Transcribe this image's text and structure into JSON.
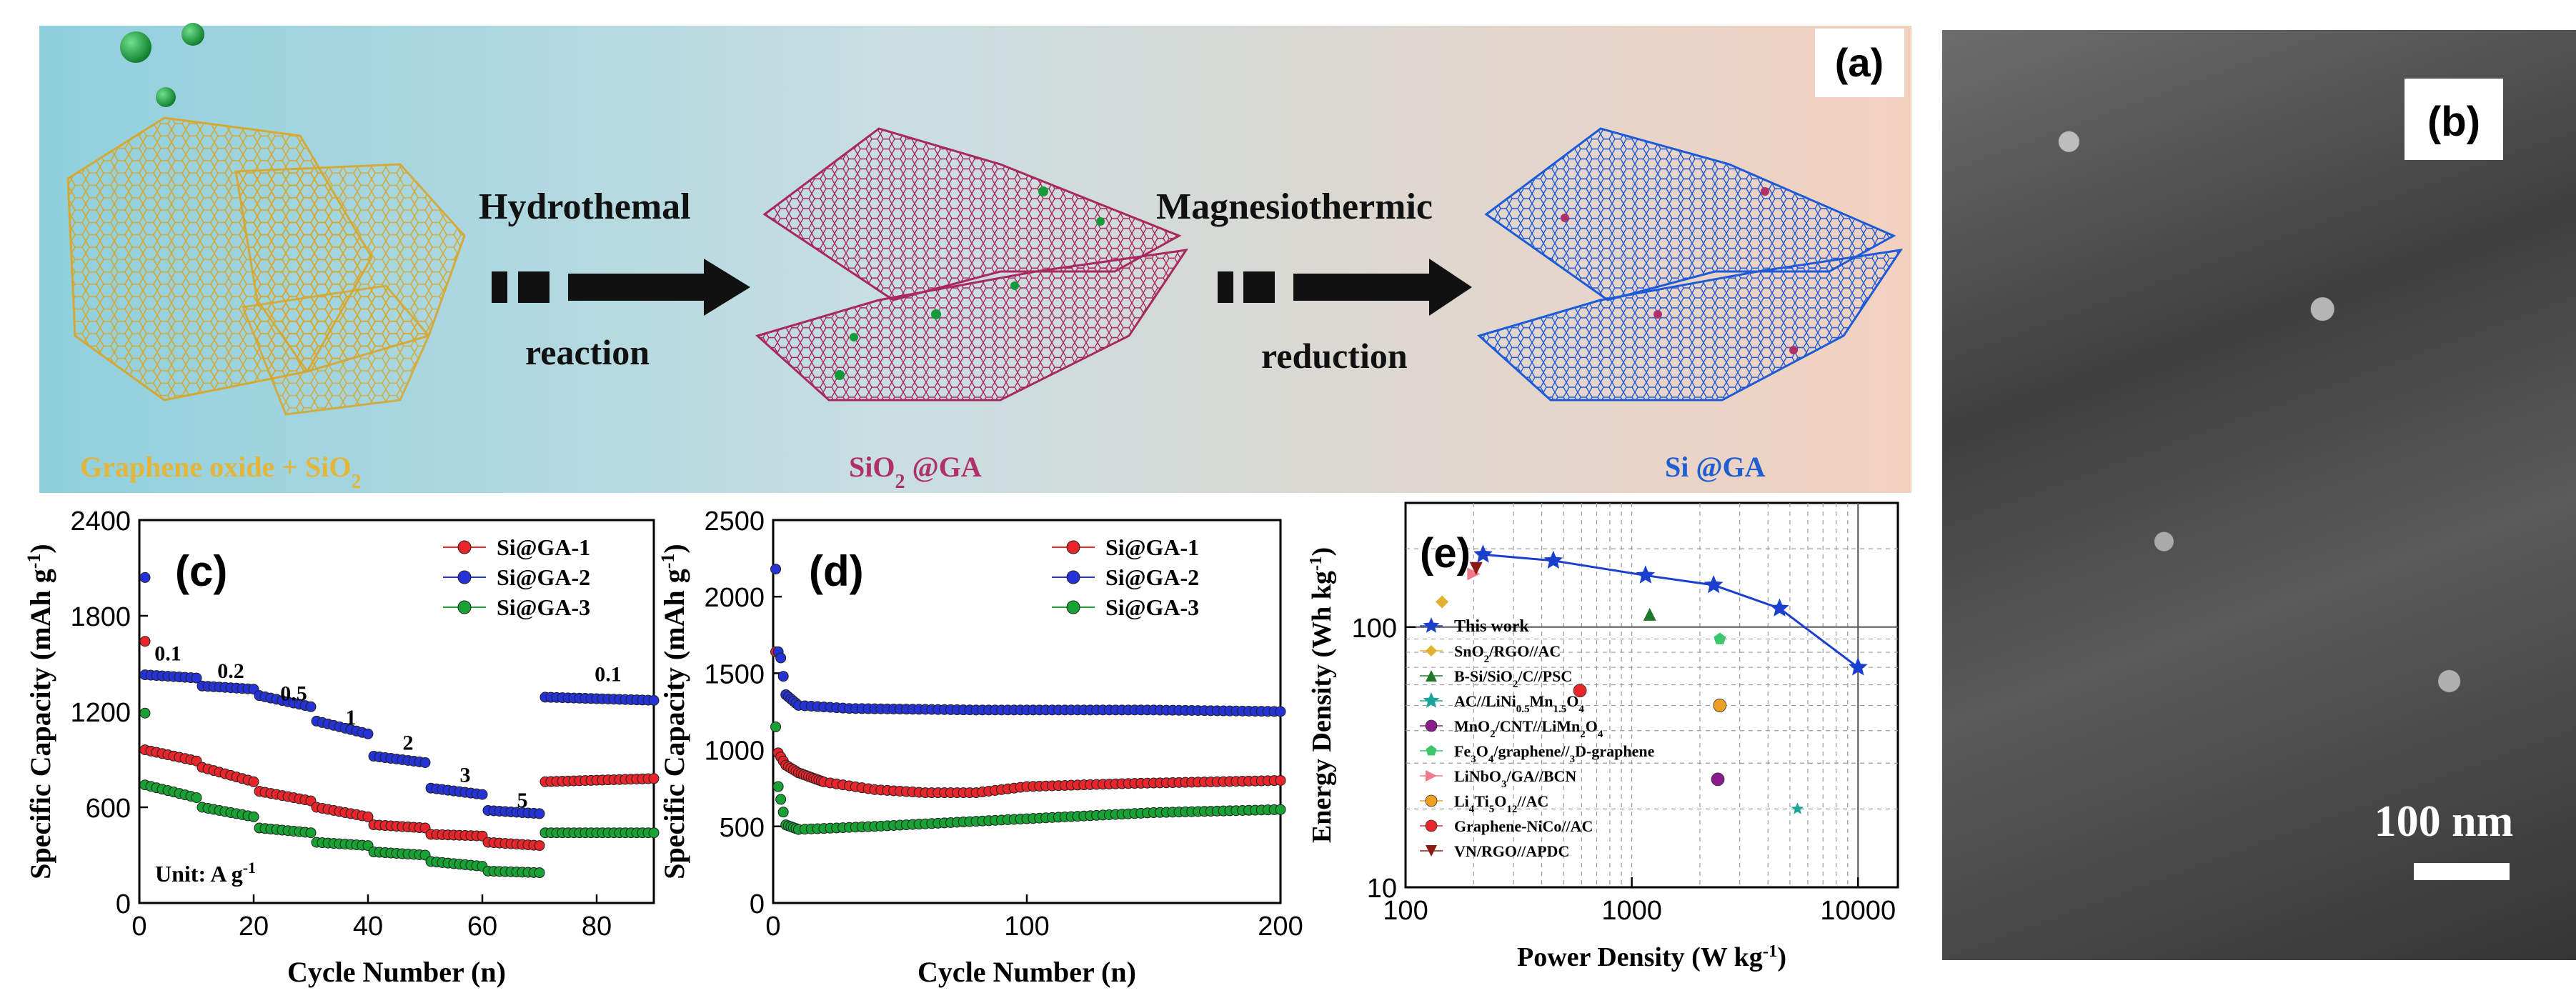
{
  "panel_a": {
    "label": "(a)",
    "steps": [
      {
        "title": "Graphene oxide + SiO",
        "sub": "2"
      },
      {
        "arrow_top": "Hydrothemal",
        "arrow_bottom": "reaction"
      },
      {
        "title": "SiO",
        "sub": "2",
        "suffix": " @GA"
      },
      {
        "arrow_top": "Magnesiothermic",
        "arrow_bottom": "reduction"
      },
      {
        "title": "Si @GA"
      }
    ],
    "colors": {
      "gold": "#e3b53a",
      "magenta": "#b0306a",
      "blue": "#1f5fd0",
      "green": "#15993a"
    }
  },
  "panel_b": {
    "label": "(b)",
    "scale_bar": "100 nm"
  },
  "chart_data": [
    {
      "id": "c",
      "label": "(c)",
      "type": "scatter",
      "xlabel": "Cycle Number (n)",
      "ylabel": "Specific Capacity (mAh g",
      "ylabel_sup": "-1",
      "ylabel_end": ")",
      "xlim": [
        0,
        90
      ],
      "ylim": [
        0,
        2400
      ],
      "xticks": [
        0,
        20,
        40,
        60,
        80
      ],
      "yticks": [
        0,
        600,
        1200,
        1800,
        2400
      ],
      "unit_label": "Unit: A g",
      "unit_sup": "-1",
      "rate_labels": [
        {
          "text": "0.1",
          "x": 5,
          "y": 1520
        },
        {
          "text": "0.2",
          "x": 16,
          "y": 1410
        },
        {
          "text": "0.5",
          "x": 27,
          "y": 1270
        },
        {
          "text": "1",
          "x": 37,
          "y": 1120
        },
        {
          "text": "2",
          "x": 47,
          "y": 960
        },
        {
          "text": "3",
          "x": 57,
          "y": 760
        },
        {
          "text": "5",
          "x": 67,
          "y": 600
        },
        {
          "text": "0.1",
          "x": 82,
          "y": 1390
        }
      ],
      "series": [
        {
          "name": "Si@GA-1",
          "color": "#e8252b",
          "first": [
            1,
            1640
          ],
          "segments": [
            [
              1,
              10,
              960,
              890
            ],
            [
              11,
              20,
              850,
              760
            ],
            [
              21,
              30,
              700,
              640
            ],
            [
              31,
              40,
              600,
              540
            ],
            [
              41,
              50,
              490,
              470
            ],
            [
              51,
              60,
              430,
              420
            ],
            [
              61,
              70,
              380,
              360
            ],
            [
              71,
              90,
              760,
              780
            ]
          ]
        },
        {
          "name": "Si@GA-2",
          "color": "#2533d6",
          "first": [
            1,
            2040
          ],
          "segments": [
            [
              1,
              10,
              1430,
              1410
            ],
            [
              11,
              20,
              1360,
              1340
            ],
            [
              21,
              30,
              1300,
              1230
            ],
            [
              31,
              40,
              1140,
              1060
            ],
            [
              41,
              50,
              920,
              880
            ],
            [
              51,
              60,
              720,
              680
            ],
            [
              61,
              70,
              580,
              560
            ],
            [
              71,
              90,
              1290,
              1270
            ]
          ]
        },
        {
          "name": "Si@GA-3",
          "color": "#17a233",
          "first": [
            1,
            1190
          ],
          "segments": [
            [
              1,
              10,
              740,
              660
            ],
            [
              11,
              20,
              600,
              540
            ],
            [
              21,
              30,
              470,
              440
            ],
            [
              31,
              40,
              380,
              360
            ],
            [
              41,
              50,
              320,
              300
            ],
            [
              51,
              60,
              260,
              230
            ],
            [
              61,
              70,
              200,
              190
            ],
            [
              71,
              90,
              440,
              440
            ]
          ]
        }
      ]
    },
    {
      "id": "d",
      "label": "(d)",
      "type": "scatter",
      "xlabel": "Cycle Number (n)",
      "ylabel": "Specific Capacity (mAh g",
      "ylabel_sup": "-1",
      "ylabel_end": ")",
      "xlim": [
        0,
        200
      ],
      "ylim": [
        0,
        2500
      ],
      "xticks": [
        0,
        100,
        200
      ],
      "yticks": [
        0,
        500,
        1000,
        1500,
        2000,
        2500
      ],
      "series": [
        {
          "name": "Si@GA-1",
          "color": "#e8252b",
          "points": [
            [
              1,
              1640
            ],
            [
              2,
              980
            ],
            [
              5,
              900
            ],
            [
              10,
              850
            ],
            [
              20,
              790
            ],
            [
              40,
              740
            ],
            [
              60,
              720
            ],
            [
              80,
              720
            ],
            [
              100,
              760
            ],
            [
              140,
              780
            ],
            [
              200,
              800
            ]
          ]
        },
        {
          "name": "Si@GA-2",
          "color": "#2533d6",
          "points": [
            [
              1,
              2180
            ],
            [
              2,
              1640
            ],
            [
              3,
              1600
            ],
            [
              5,
              1360
            ],
            [
              10,
              1290
            ],
            [
              30,
              1270
            ],
            [
              80,
              1260
            ],
            [
              150,
              1260
            ],
            [
              200,
              1250
            ]
          ]
        },
        {
          "name": "Si@GA-3",
          "color": "#17a233",
          "points": [
            [
              1,
              1150
            ],
            [
              2,
              760
            ],
            [
              5,
              510
            ],
            [
              10,
              480
            ],
            [
              40,
              500
            ],
            [
              100,
              550
            ],
            [
              150,
              590
            ],
            [
              200,
              610
            ]
          ]
        }
      ]
    },
    {
      "id": "e",
      "label": "(e)",
      "type": "scatter",
      "xscale": "log",
      "yscale": "log",
      "xlabel": "Power Density (W kg",
      "xlabel_sup": "-1",
      "xlabel_end": ")",
      "ylabel": "Energy Density (Wh kg",
      "ylabel_sup": "-1",
      "ylabel_end": ")",
      "xlim": [
        100,
        15000
      ],
      "ylim": [
        10,
        300
      ],
      "xticks": [
        100,
        1000,
        10000
      ],
      "yticks": [
        10,
        100
      ],
      "line": {
        "name": "This work",
        "color": "#1a3fcf",
        "points": [
          [
            220,
            190
          ],
          [
            450,
            180
          ],
          [
            1150,
            158
          ],
          [
            2300,
            145
          ],
          [
            4500,
            118
          ],
          [
            10000,
            70
          ]
        ]
      },
      "legend": [
        {
          "text": "This work",
          "color": "#1a3fcf",
          "marker": "star"
        },
        {
          "text": "SnO2/RGO//AC",
          "color": "#e0b230",
          "marker": "diamond"
        },
        {
          "text": "B-Si/SiO2/C//PSC",
          "color": "#1e7a2a",
          "marker": "triangle"
        },
        {
          "text": "AC//LiNi0.5Mn1.5O4",
          "color": "#1aa59a",
          "marker": "star"
        },
        {
          "text": "MnO2/CNT//LiMn2O4",
          "color": "#8b1a8b",
          "marker": "circle"
        },
        {
          "text": "Fe3O4/graphene//3D-graphene",
          "color": "#3cc86a",
          "marker": "pentagon"
        },
        {
          "text": "LiNbO3/GA//BCN",
          "color": "#f07a8a",
          "marker": "tri-right"
        },
        {
          "text": "Li4Ti5O12//AC",
          "color": "#f0a020",
          "marker": "circle"
        },
        {
          "text": "Graphene-NiCo//AC",
          "color": "#e8252b",
          "marker": "circle"
        },
        {
          "text": "VN/RGO//APDC",
          "color": "#8b1a10",
          "marker": "tri-down"
        }
      ],
      "points": [
        {
          "name": "SnO2/RGO//AC",
          "x": 145,
          "y": 125
        },
        {
          "name": "B-Si/SiO2/C//PSC",
          "x": 1200,
          "y": 112
        },
        {
          "name": "AC//LiNi0.5Mn1.5O4",
          "x": 5400,
          "y": 20
        },
        {
          "name": "MnO2/CNT//LiMn2O4",
          "x": 2400,
          "y": 26
        },
        {
          "name": "Fe3O4/graphene//3D-graphene",
          "x": 2450,
          "y": 90
        },
        {
          "name": "LiNbO3/GA//BCN",
          "x": 200,
          "y": 160
        },
        {
          "name": "Li4Ti5O12//AC",
          "x": 2450,
          "y": 50
        },
        {
          "name": "Graphene-NiCo//AC",
          "x": 590,
          "y": 57
        },
        {
          "name": "VN/RGO//APDC",
          "x": 205,
          "y": 168
        }
      ]
    }
  ]
}
